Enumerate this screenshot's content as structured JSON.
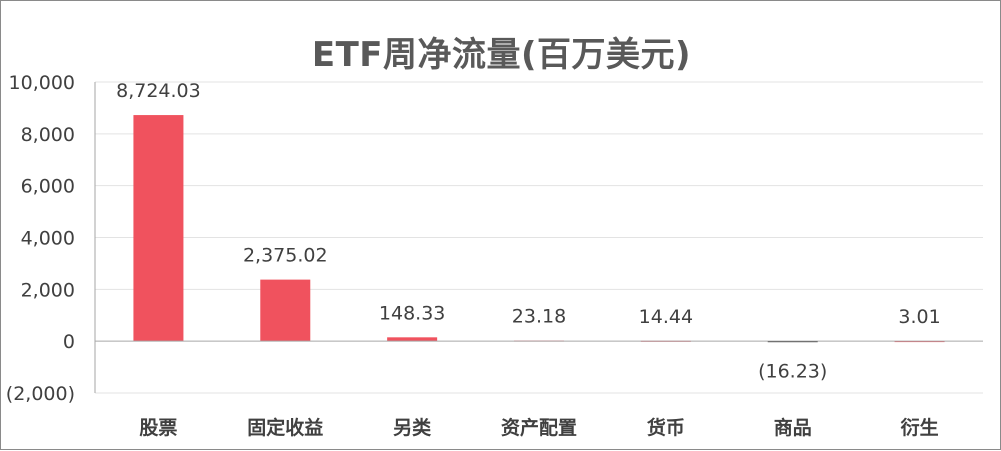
{
  "chart_data": {
    "type": "bar",
    "title": "ETF周净流量(百万美元)",
    "categories": [
      "股票",
      "固定收益",
      "另类",
      "资产配置",
      "货币",
      "商品",
      "衍生"
    ],
    "values": [
      8724.03,
      2375.02,
      148.33,
      23.18,
      14.44,
      -16.23,
      3.01
    ],
    "value_labels": [
      "8,724.03",
      "2,375.02",
      "148.33",
      "23.18",
      "14.44",
      "(16.23)",
      "3.01"
    ],
    "ylim": [
      -2000,
      10000
    ],
    "yticks": [
      10000,
      8000,
      6000,
      4000,
      2000,
      0,
      -2000
    ],
    "ytick_labels": [
      "10,000",
      "8,000",
      "6,000",
      "4,000",
      "2,000",
      "0",
      "(2,000)"
    ],
    "grid": true,
    "colors": {
      "bar_positive": "#f0525e",
      "bar_negative": "#1a1a1a",
      "negative_text": "#e60000",
      "text": "#404040",
      "grid": "#e3e3e3",
      "axis": "#a6a6a6"
    }
  }
}
